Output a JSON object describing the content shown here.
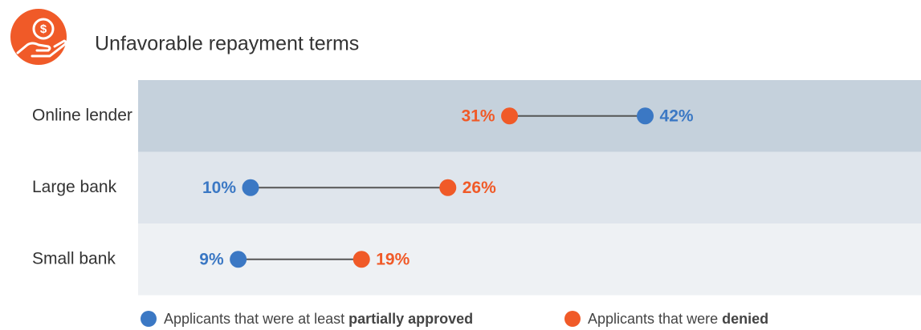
{
  "chart_data": {
    "type": "dumbbell",
    "title": "Unfavorable repayment terms",
    "categories": [
      "Online lender",
      "Large bank",
      "Small bank"
    ],
    "series": [
      {
        "name": "Applicants that were at least",
        "name_bold": "partially approved",
        "color": "#3b78c4",
        "values": [
          42,
          10,
          9
        ],
        "value_labels": [
          "42%",
          "10%",
          "9%"
        ]
      },
      {
        "name": "Applicants that were",
        "name_bold": "denied",
        "color": "#f05a28",
        "values": [
          31,
          26,
          19
        ],
        "value_labels": [
          "31%",
          "26%",
          "19%"
        ]
      }
    ],
    "band_colors": [
      "#c5d1dc",
      "#dfe5ec",
      "#eef1f4"
    ],
    "line_color": "#555555"
  }
}
